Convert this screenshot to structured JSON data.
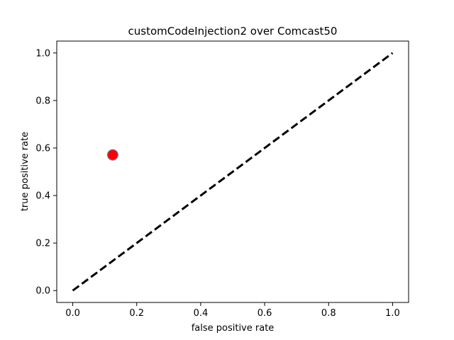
{
  "chart_data": {
    "type": "scatter",
    "title": "customCodeInjection2 over Comcast50",
    "xlabel": "false positive rate",
    "ylabel": "true positive rate",
    "xlim": [
      -0.05,
      1.05
    ],
    "ylim": [
      -0.05,
      1.05
    ],
    "xticks": [
      0.0,
      0.2,
      0.4,
      0.6,
      0.8,
      1.0
    ],
    "yticks": [
      0.0,
      0.2,
      0.4,
      0.6,
      0.8,
      1.0
    ],
    "xtick_labels": [
      "0.0",
      "0.2",
      "0.4",
      "0.6",
      "0.8",
      "1.0"
    ],
    "ytick_labels": [
      "0.0",
      "0.2",
      "0.4",
      "0.6",
      "0.8",
      "1.0"
    ],
    "grid": false,
    "points": [
      {
        "x": 0.125,
        "y": 0.571,
        "color": "#ff0000",
        "edge_color": "#5b8fc7"
      }
    ],
    "reference_line": {
      "x": [
        0.0,
        1.0
      ],
      "y": [
        0.0,
        1.0
      ],
      "style": "dashed",
      "color": "#000000"
    }
  }
}
